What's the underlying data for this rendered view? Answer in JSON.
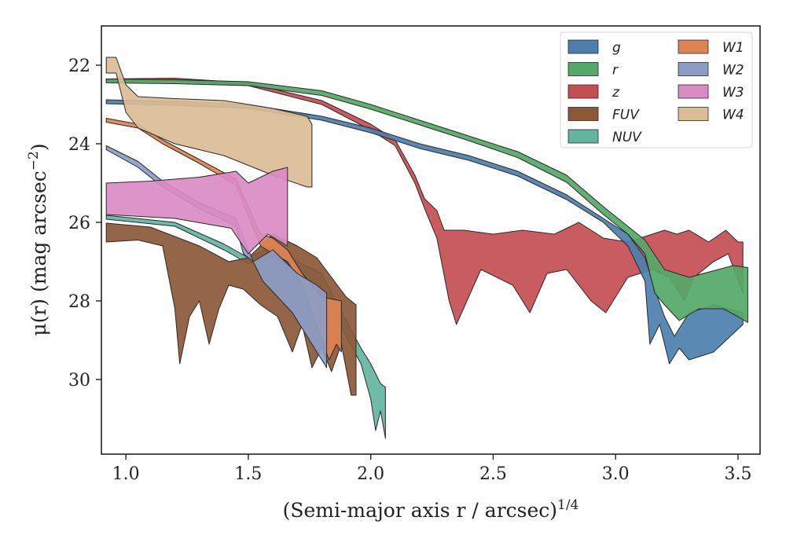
{
  "chart_data": {
    "type": "area",
    "title": "",
    "xlabel": "(Semi-major axis r / arcsec)",
    "xlabel_superscript": "1/4",
    "ylabel": "μ(r) (mag arcsec",
    "ylabel_superscript": "−2",
    "ylabel_close": ")",
    "xlim": [
      0.9,
      3.59
    ],
    "ylim": [
      31.9,
      21.0
    ],
    "y_inverted": true,
    "xticks": [
      1.0,
      1.5,
      2.0,
      2.5,
      3.0,
      3.5
    ],
    "xtick_labels": [
      "1.0",
      "1.5",
      "2.0",
      "2.5",
      "3.0",
      "3.5"
    ],
    "yticks": [
      22,
      24,
      26,
      28,
      30
    ],
    "ytick_labels": [
      "22",
      "24",
      "26",
      "28",
      "30"
    ],
    "grid": false,
    "legend_position": "top-right",
    "legend_columns": 2,
    "series": [
      {
        "name": "g",
        "color": "#4c7fae",
        "upper": [
          [
            0.92,
            22.88
          ],
          [
            1.2,
            22.92
          ],
          [
            1.5,
            23.0
          ],
          [
            1.8,
            23.3
          ],
          [
            2.0,
            23.6
          ],
          [
            2.2,
            24.0
          ],
          [
            2.4,
            24.3
          ],
          [
            2.6,
            24.7
          ],
          [
            2.8,
            25.3
          ],
          [
            2.95,
            25.9
          ],
          [
            3.05,
            26.3
          ],
          [
            3.12,
            26.9
          ],
          [
            3.16,
            27.7
          ],
          [
            3.2,
            28.4
          ],
          [
            3.24,
            28.9
          ],
          [
            3.3,
            28.3
          ],
          [
            3.4,
            28.1
          ],
          [
            3.52,
            28.3
          ]
        ],
        "lower": [
          [
            0.92,
            22.98
          ],
          [
            1.2,
            23.02
          ],
          [
            1.5,
            23.1
          ],
          [
            1.8,
            23.4
          ],
          [
            2.0,
            23.72
          ],
          [
            2.2,
            24.12
          ],
          [
            2.4,
            24.42
          ],
          [
            2.6,
            24.82
          ],
          [
            2.8,
            25.42
          ],
          [
            2.95,
            26.0
          ],
          [
            3.05,
            26.6
          ],
          [
            3.12,
            27.5
          ],
          [
            3.14,
            29.1
          ],
          [
            3.18,
            28.6
          ],
          [
            3.22,
            29.6
          ],
          [
            3.26,
            29.2
          ],
          [
            3.3,
            29.5
          ],
          [
            3.4,
            29.3
          ],
          [
            3.52,
            28.6
          ]
        ]
      },
      {
        "name": "r",
        "color": "#55a868",
        "upper": [
          [
            0.92,
            22.35
          ],
          [
            1.2,
            22.37
          ],
          [
            1.5,
            22.42
          ],
          [
            1.8,
            22.65
          ],
          [
            2.0,
            23.0
          ],
          [
            2.2,
            23.4
          ],
          [
            2.4,
            23.8
          ],
          [
            2.6,
            24.2
          ],
          [
            2.8,
            24.8
          ],
          [
            2.95,
            25.6
          ],
          [
            3.05,
            26.1
          ],
          [
            3.12,
            26.45
          ],
          [
            3.2,
            27.2
          ],
          [
            3.3,
            27.4
          ],
          [
            3.42,
            27.2
          ],
          [
            3.48,
            27.1
          ],
          [
            3.54,
            27.15
          ]
        ],
        "lower": [
          [
            0.92,
            22.45
          ],
          [
            1.2,
            22.47
          ],
          [
            1.5,
            22.52
          ],
          [
            1.8,
            22.77
          ],
          [
            2.0,
            23.12
          ],
          [
            2.2,
            23.52
          ],
          [
            2.4,
            23.92
          ],
          [
            2.6,
            24.35
          ],
          [
            2.8,
            24.98
          ],
          [
            2.95,
            25.8
          ],
          [
            3.05,
            26.3
          ],
          [
            3.12,
            26.8
          ],
          [
            3.16,
            27.8
          ],
          [
            3.2,
            28.1
          ],
          [
            3.26,
            28.5
          ],
          [
            3.34,
            28.2
          ],
          [
            3.44,
            28.2
          ],
          [
            3.5,
            28.4
          ],
          [
            3.54,
            28.55
          ]
        ]
      },
      {
        "name": "z",
        "color": "#c44e52",
        "upper": [
          [
            0.92,
            22.35
          ],
          [
            1.2,
            22.33
          ],
          [
            1.5,
            22.45
          ],
          [
            1.8,
            22.9
          ],
          [
            2.0,
            23.5
          ],
          [
            2.1,
            23.9
          ],
          [
            2.18,
            24.8
          ],
          [
            2.22,
            25.4
          ],
          [
            2.27,
            25.7
          ],
          [
            2.3,
            26.2
          ],
          [
            2.38,
            26.2
          ],
          [
            2.5,
            26.3
          ],
          [
            2.62,
            26.2
          ],
          [
            2.75,
            26.3
          ],
          [
            2.85,
            26.0
          ],
          [
            2.95,
            26.4
          ],
          [
            3.05,
            26.5
          ],
          [
            3.15,
            26.3
          ],
          [
            3.2,
            26.2
          ],
          [
            3.25,
            26.3
          ],
          [
            3.3,
            26.2
          ],
          [
            3.38,
            26.5
          ],
          [
            3.45,
            26.2
          ],
          [
            3.5,
            26.5
          ],
          [
            3.52,
            26.5
          ]
        ],
        "lower": [
          [
            0.92,
            22.42
          ],
          [
            1.2,
            22.4
          ],
          [
            1.5,
            22.52
          ],
          [
            1.8,
            23.0
          ],
          [
            2.0,
            23.65
          ],
          [
            2.1,
            24.05
          ],
          [
            2.18,
            25.0
          ],
          [
            2.22,
            25.65
          ],
          [
            2.27,
            26.4
          ],
          [
            2.32,
            28.0
          ],
          [
            2.35,
            28.6
          ],
          [
            2.45,
            27.2
          ],
          [
            2.58,
            27.6
          ],
          [
            2.65,
            28.3
          ],
          [
            2.72,
            27.3
          ],
          [
            2.8,
            27.2
          ],
          [
            2.9,
            28.0
          ],
          [
            2.96,
            28.3
          ],
          [
            3.05,
            27.4
          ],
          [
            3.15,
            27.2
          ],
          [
            3.22,
            27.4
          ],
          [
            3.28,
            28.0
          ],
          [
            3.32,
            27.4
          ],
          [
            3.4,
            27.0
          ],
          [
            3.46,
            26.8
          ],
          [
            3.52,
            27.8
          ]
        ]
      },
      {
        "name": "FUV",
        "color": "#8c5838",
        "upper": [
          [
            0.92,
            26.02
          ],
          [
            1.1,
            26.12
          ],
          [
            1.3,
            26.6
          ],
          [
            1.42,
            27.0
          ],
          [
            1.5,
            26.9
          ],
          [
            1.6,
            26.3
          ],
          [
            1.7,
            26.6
          ],
          [
            1.78,
            26.9
          ],
          [
            1.9,
            27.9
          ],
          [
            1.94,
            28.1
          ]
        ],
        "lower": [
          [
            0.92,
            26.5
          ],
          [
            1.05,
            26.45
          ],
          [
            1.15,
            26.6
          ],
          [
            1.2,
            28.2
          ],
          [
            1.22,
            29.6
          ],
          [
            1.26,
            28.4
          ],
          [
            1.3,
            28.0
          ],
          [
            1.34,
            29.1
          ],
          [
            1.38,
            28.2
          ],
          [
            1.42,
            27.6
          ],
          [
            1.48,
            27.7
          ],
          [
            1.55,
            28.1
          ],
          [
            1.62,
            28.4
          ],
          [
            1.68,
            29.3
          ],
          [
            1.72,
            28.6
          ],
          [
            1.76,
            29.7
          ],
          [
            1.8,
            29.2
          ],
          [
            1.84,
            29.8
          ],
          [
            1.88,
            29.1
          ],
          [
            1.92,
            30.4
          ],
          [
            1.94,
            30.4
          ]
        ]
      },
      {
        "name": "NUV",
        "color": "#64b5a0",
        "upper": [
          [
            0.92,
            25.82
          ],
          [
            1.2,
            26.0
          ],
          [
            1.4,
            26.55
          ],
          [
            1.5,
            26.9
          ],
          [
            1.6,
            26.6
          ],
          [
            1.7,
            27.0
          ],
          [
            1.8,
            27.3
          ],
          [
            1.9,
            28.5
          ],
          [
            1.96,
            29.2
          ],
          [
            2.0,
            29.6
          ],
          [
            2.04,
            30.1
          ],
          [
            2.06,
            30.2
          ]
        ],
        "lower": [
          [
            0.92,
            25.92
          ],
          [
            1.2,
            26.1
          ],
          [
            1.4,
            26.7
          ],
          [
            1.5,
            27.05
          ],
          [
            1.6,
            26.9
          ],
          [
            1.7,
            27.3
          ],
          [
            1.8,
            27.7
          ],
          [
            1.9,
            28.9
          ],
          [
            1.96,
            29.6
          ],
          [
            2.0,
            30.5
          ],
          [
            2.02,
            31.3
          ],
          [
            2.04,
            30.8
          ],
          [
            2.06,
            31.5
          ]
        ]
      },
      {
        "name": "W1",
        "color": "#dd8452",
        "upper": [
          [
            0.92,
            23.35
          ],
          [
            1.05,
            23.5
          ],
          [
            1.15,
            23.9
          ],
          [
            1.3,
            24.4
          ],
          [
            1.45,
            24.9
          ],
          [
            1.55,
            26.3
          ],
          [
            1.6,
            26.4
          ],
          [
            1.66,
            26.7
          ],
          [
            1.72,
            27.3
          ],
          [
            1.8,
            27.9
          ],
          [
            1.88,
            28.0
          ]
        ],
        "lower": [
          [
            0.92,
            23.45
          ],
          [
            1.05,
            23.6
          ],
          [
            1.15,
            24.0
          ],
          [
            1.3,
            24.5
          ],
          [
            1.45,
            25.05
          ],
          [
            1.55,
            26.6
          ],
          [
            1.6,
            26.8
          ],
          [
            1.66,
            27.0
          ],
          [
            1.72,
            27.6
          ],
          [
            1.8,
            29.0
          ],
          [
            1.83,
            29.5
          ],
          [
            1.86,
            29.1
          ],
          [
            1.88,
            29.3
          ]
        ]
      },
      {
        "name": "W2",
        "color": "#8c9dc4",
        "upper": [
          [
            0.92,
            24.05
          ],
          [
            1.05,
            24.45
          ],
          [
            1.15,
            24.95
          ],
          [
            1.3,
            25.5
          ],
          [
            1.45,
            25.9
          ],
          [
            1.52,
            27.0
          ],
          [
            1.6,
            26.7
          ],
          [
            1.7,
            27.3
          ],
          [
            1.78,
            27.6
          ],
          [
            1.82,
            27.8
          ]
        ],
        "lower": [
          [
            0.92,
            24.15
          ],
          [
            1.05,
            24.6
          ],
          [
            1.15,
            25.1
          ],
          [
            1.3,
            25.65
          ],
          [
            1.45,
            26.1
          ],
          [
            1.48,
            26.8
          ],
          [
            1.52,
            27.0
          ],
          [
            1.56,
            27.5
          ],
          [
            1.62,
            27.9
          ],
          [
            1.68,
            28.3
          ],
          [
            1.72,
            28.7
          ],
          [
            1.78,
            29.3
          ],
          [
            1.82,
            29.7
          ]
        ]
      },
      {
        "name": "W3",
        "color": "#da8bc3",
        "upper": [
          [
            0.92,
            25.0
          ],
          [
            1.1,
            24.95
          ],
          [
            1.3,
            24.85
          ],
          [
            1.45,
            24.7
          ],
          [
            1.5,
            25.0
          ],
          [
            1.6,
            24.7
          ],
          [
            1.66,
            24.6
          ]
        ],
        "lower": [
          [
            0.92,
            25.8
          ],
          [
            1.2,
            25.9
          ],
          [
            1.43,
            26.15
          ],
          [
            1.5,
            26.8
          ],
          [
            1.58,
            26.3
          ],
          [
            1.66,
            26.6
          ]
        ]
      },
      {
        "name": "W4",
        "color": "#dbbd96",
        "upper": [
          [
            0.92,
            21.8
          ],
          [
            0.96,
            21.8
          ],
          [
            1.0,
            22.5
          ],
          [
            1.05,
            22.8
          ],
          [
            1.2,
            22.85
          ],
          [
            1.4,
            22.9
          ],
          [
            1.6,
            23.1
          ],
          [
            1.74,
            23.3
          ],
          [
            1.76,
            23.5
          ]
        ],
        "lower": [
          [
            0.92,
            22.2
          ],
          [
            0.96,
            22.2
          ],
          [
            1.0,
            23.2
          ],
          [
            1.05,
            23.6
          ],
          [
            1.2,
            24.0
          ],
          [
            1.4,
            24.3
          ],
          [
            1.6,
            24.8
          ],
          [
            1.74,
            25.1
          ],
          [
            1.76,
            25.1
          ]
        ]
      }
    ]
  }
}
